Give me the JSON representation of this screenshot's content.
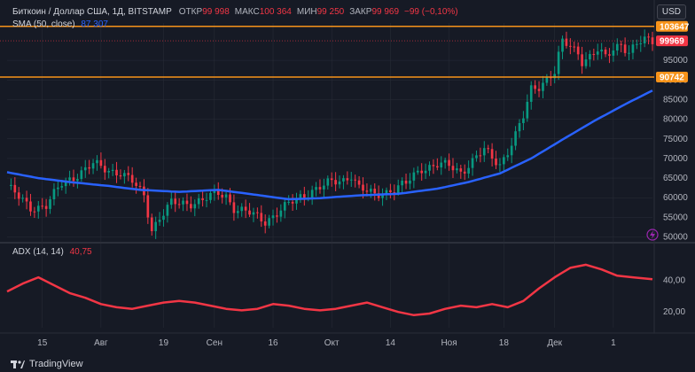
{
  "header": {
    "title": "Биткоин / Доллар США, 1Д, BITSTAMP",
    "ohlc": [
      {
        "key": "ОТКР",
        "value": "99 998"
      },
      {
        "key": "МАКС",
        "value": "100 364"
      },
      {
        "key": "МИН",
        "value": "99 250"
      },
      {
        "key": "ЗАКР",
        "value": "99 969"
      },
      {
        "key": "",
        "value": "−99 (−0,10%)"
      }
    ],
    "sma_label": "SMA (50, close)",
    "sma_value": "87 307",
    "adx_label": "ADX (14, 14)",
    "adx_value": "40,75",
    "currency": "USD",
    "brand": "TradingView"
  },
  "colors": {
    "bg": "#161a25",
    "up": "#089981",
    "down": "#f23645",
    "sma": "#2962ff",
    "adx": "#f23645",
    "level": "#f7931a",
    "grid": "#2a2e39"
  },
  "chart_data": [
    {
      "type": "candlestick",
      "title": "Биткоин / Доллар США, 1Д, BITSTAMP",
      "x_ticks": [
        "15",
        "Авг",
        "19",
        "Сен",
        "16",
        "Окт",
        "14",
        "Ноя",
        "18",
        "Дек",
        "1"
      ],
      "y_ticks": [
        50000,
        55000,
        60000,
        65000,
        70000,
        75000,
        80000,
        85000,
        90000,
        95000
      ],
      "ylim": [
        49000,
        104500
      ],
      "price_labels": [
        {
          "value": 103647,
          "label": "103647",
          "color": "#f7931a"
        },
        {
          "value": 99969,
          "label": "99969",
          "color": "#f23645"
        },
        {
          "value": 90742,
          "label": "90742",
          "color": "#f7931a"
        }
      ],
      "horizontal_levels": [
        103647,
        90742
      ],
      "close_anchors": [
        [
          0,
          63000
        ],
        [
          3,
          60000
        ],
        [
          6,
          57500
        ],
        [
          10,
          58000
        ],
        [
          14,
          63500
        ],
        [
          18,
          66000
        ],
        [
          22,
          68500
        ],
        [
          26,
          67000
        ],
        [
          29,
          66500
        ],
        [
          32,
          64000
        ],
        [
          35,
          60500
        ],
        [
          37,
          52000
        ],
        [
          39,
          55000
        ],
        [
          42,
          58500
        ],
        [
          46,
          58500
        ],
        [
          50,
          59500
        ],
        [
          54,
          61000
        ],
        [
          56,
          60500
        ],
        [
          58,
          57500
        ],
        [
          62,
          56000
        ],
        [
          66,
          54000
        ],
        [
          70,
          57000
        ],
        [
          74,
          59500
        ],
        [
          78,
          62000
        ],
        [
          82,
          63500
        ],
        [
          86,
          64500
        ],
        [
          88,
          66000
        ],
        [
          90,
          62500
        ],
        [
          94,
          60500
        ],
        [
          98,
          62000
        ],
        [
          102,
          63500
        ],
        [
          106,
          67500
        ],
        [
          110,
          68500
        ],
        [
          113,
          68000
        ],
        [
          116,
          66500
        ],
        [
          120,
          70500
        ],
        [
          122,
          72000
        ],
        [
          124,
          70000
        ],
        [
          126,
          68500
        ],
        [
          128,
          72000
        ],
        [
          130,
          76000
        ],
        [
          132,
          80500
        ],
        [
          133,
          84000
        ],
        [
          134,
          87500
        ],
        [
          136,
          88500
        ],
        [
          138,
          90500
        ],
        [
          140,
          92000
        ],
        [
          141,
          96000
        ],
        [
          142,
          99500
        ],
        [
          144,
          98500
        ],
        [
          146,
          97000
        ],
        [
          147,
          95000
        ],
        [
          149,
          96000
        ],
        [
          151,
          97500
        ],
        [
          153,
          95500
        ],
        [
          155,
          98000
        ],
        [
          157,
          99500
        ],
        [
          159,
          97000
        ],
        [
          161,
          99000
        ],
        [
          163,
          100000
        ],
        [
          165,
          99969
        ]
      ],
      "sma": [
        [
          0,
          66500
        ],
        [
          8,
          65000
        ],
        [
          16,
          64000
        ],
        [
          26,
          63000
        ],
        [
          34,
          62000
        ],
        [
          44,
          61500
        ],
        [
          54,
          62000
        ],
        [
          64,
          60700
        ],
        [
          72,
          59600
        ],
        [
          80,
          59900
        ],
        [
          90,
          60600
        ],
        [
          100,
          61000
        ],
        [
          110,
          62300
        ],
        [
          118,
          64000
        ],
        [
          126,
          66200
        ],
        [
          134,
          70000
        ],
        [
          142,
          74800
        ],
        [
          150,
          79500
        ],
        [
          158,
          83800
        ],
        [
          165,
          87307
        ]
      ]
    },
    {
      "type": "line",
      "title": "ADX (14, 14)",
      "y_ticks": [
        20,
        40
      ],
      "ylim": [
        10,
        55
      ],
      "series": [
        {
          "name": "ADX (14, 14)",
          "values": [
            [
              0,
              33
            ],
            [
              4,
              38
            ],
            [
              8,
              42
            ],
            [
              12,
              37
            ],
            [
              16,
              32
            ],
            [
              20,
              29
            ],
            [
              24,
              25
            ],
            [
              28,
              23
            ],
            [
              32,
              22
            ],
            [
              36,
              24
            ],
            [
              40,
              26
            ],
            [
              44,
              27
            ],
            [
              48,
              26
            ],
            [
              52,
              24
            ],
            [
              56,
              22
            ],
            [
              60,
              21
            ],
            [
              64,
              22
            ],
            [
              68,
              25
            ],
            [
              72,
              24
            ],
            [
              76,
              22
            ],
            [
              80,
              21
            ],
            [
              84,
              22
            ],
            [
              88,
              24
            ],
            [
              92,
              26
            ],
            [
              96,
              23
            ],
            [
              100,
              20
            ],
            [
              104,
              18
            ],
            [
              108,
              19
            ],
            [
              112,
              22
            ],
            [
              116,
              24
            ],
            [
              120,
              23
            ],
            [
              124,
              25
            ],
            [
              128,
              23
            ],
            [
              132,
              27
            ],
            [
              136,
              35
            ],
            [
              140,
              42
            ],
            [
              144,
              48
            ],
            [
              148,
              50
            ],
            [
              152,
              47
            ],
            [
              156,
              43
            ],
            [
              160,
              42
            ],
            [
              165,
              40.75
            ]
          ]
        }
      ]
    }
  ]
}
